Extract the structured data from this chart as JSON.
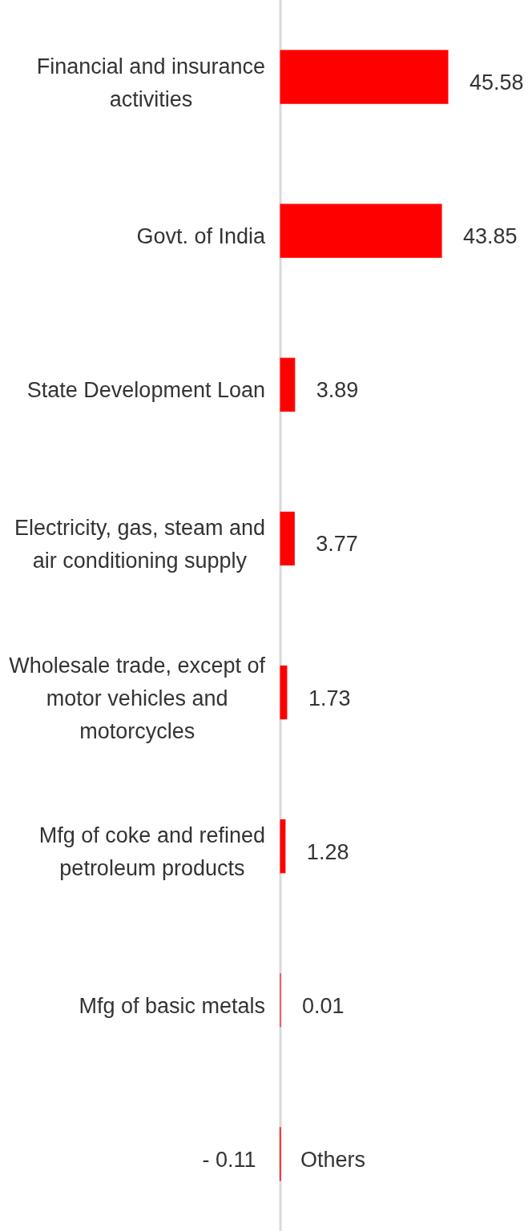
{
  "chart_data": {
    "type": "bar",
    "orientation": "horizontal",
    "categories": [
      "Financial and insurance activities",
      "Govt. of India",
      "State Development Loan",
      "Electricity, gas, steam and air conditioning supply",
      "Wholesale trade, except of motor vehicles and motorcycles",
      "Mfg of coke and refined petroleum products",
      "Mfg of basic metals",
      "Others"
    ],
    "values": [
      45.58,
      43.85,
      3.89,
      3.77,
      1.73,
      1.28,
      0.01,
      -0.11
    ],
    "color": "#ff0000",
    "value_labels": [
      "45.58",
      "43.85",
      "3.89",
      "3.77",
      "1.73",
      "1.28",
      "0.01",
      "- 0.11"
    ],
    "tick_labels": "y"
  }
}
